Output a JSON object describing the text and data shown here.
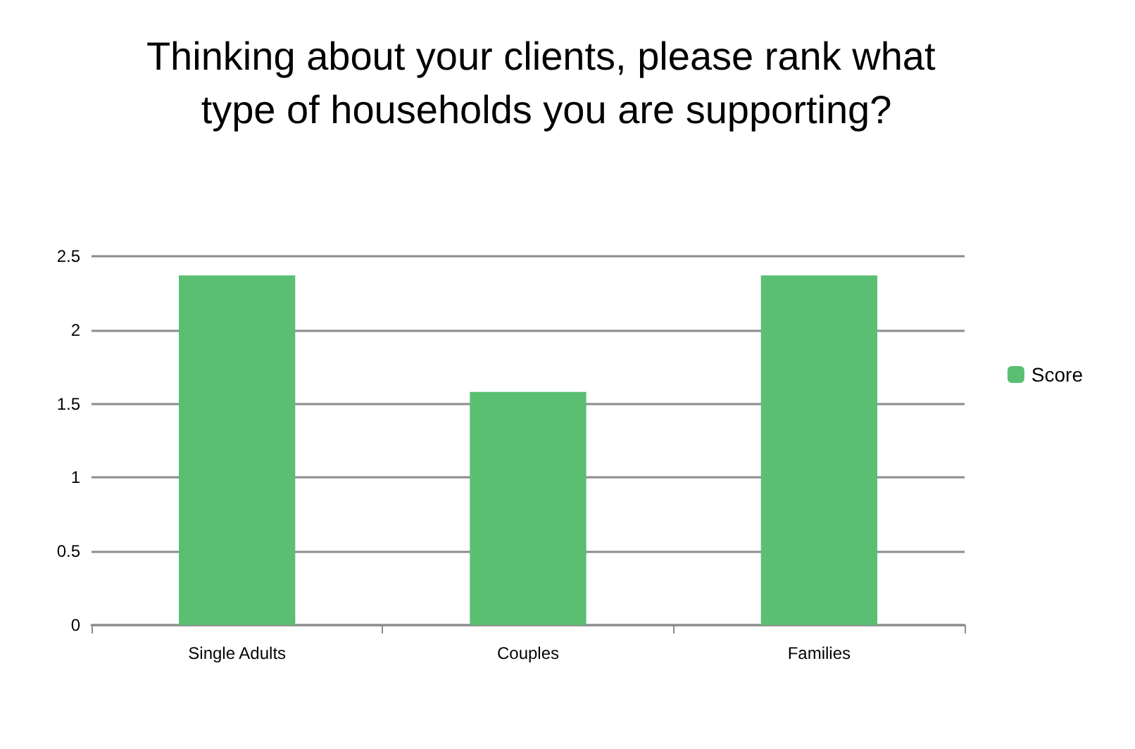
{
  "chart_data": {
    "type": "bar",
    "title": "Thinking about your clients, please rank what type of households you are supporting?",
    "categories": [
      "Single Adults",
      "Couples",
      "Families"
    ],
    "series": [
      {
        "name": "Score",
        "color": "#5bbf73",
        "values": [
          2.37,
          1.58,
          2.37
        ]
      }
    ],
    "ylim": [
      0,
      2.5
    ],
    "yticks": [
      0,
      0.5,
      1,
      1.5,
      2,
      2.5
    ],
    "grid": "y",
    "legend": "right"
  }
}
